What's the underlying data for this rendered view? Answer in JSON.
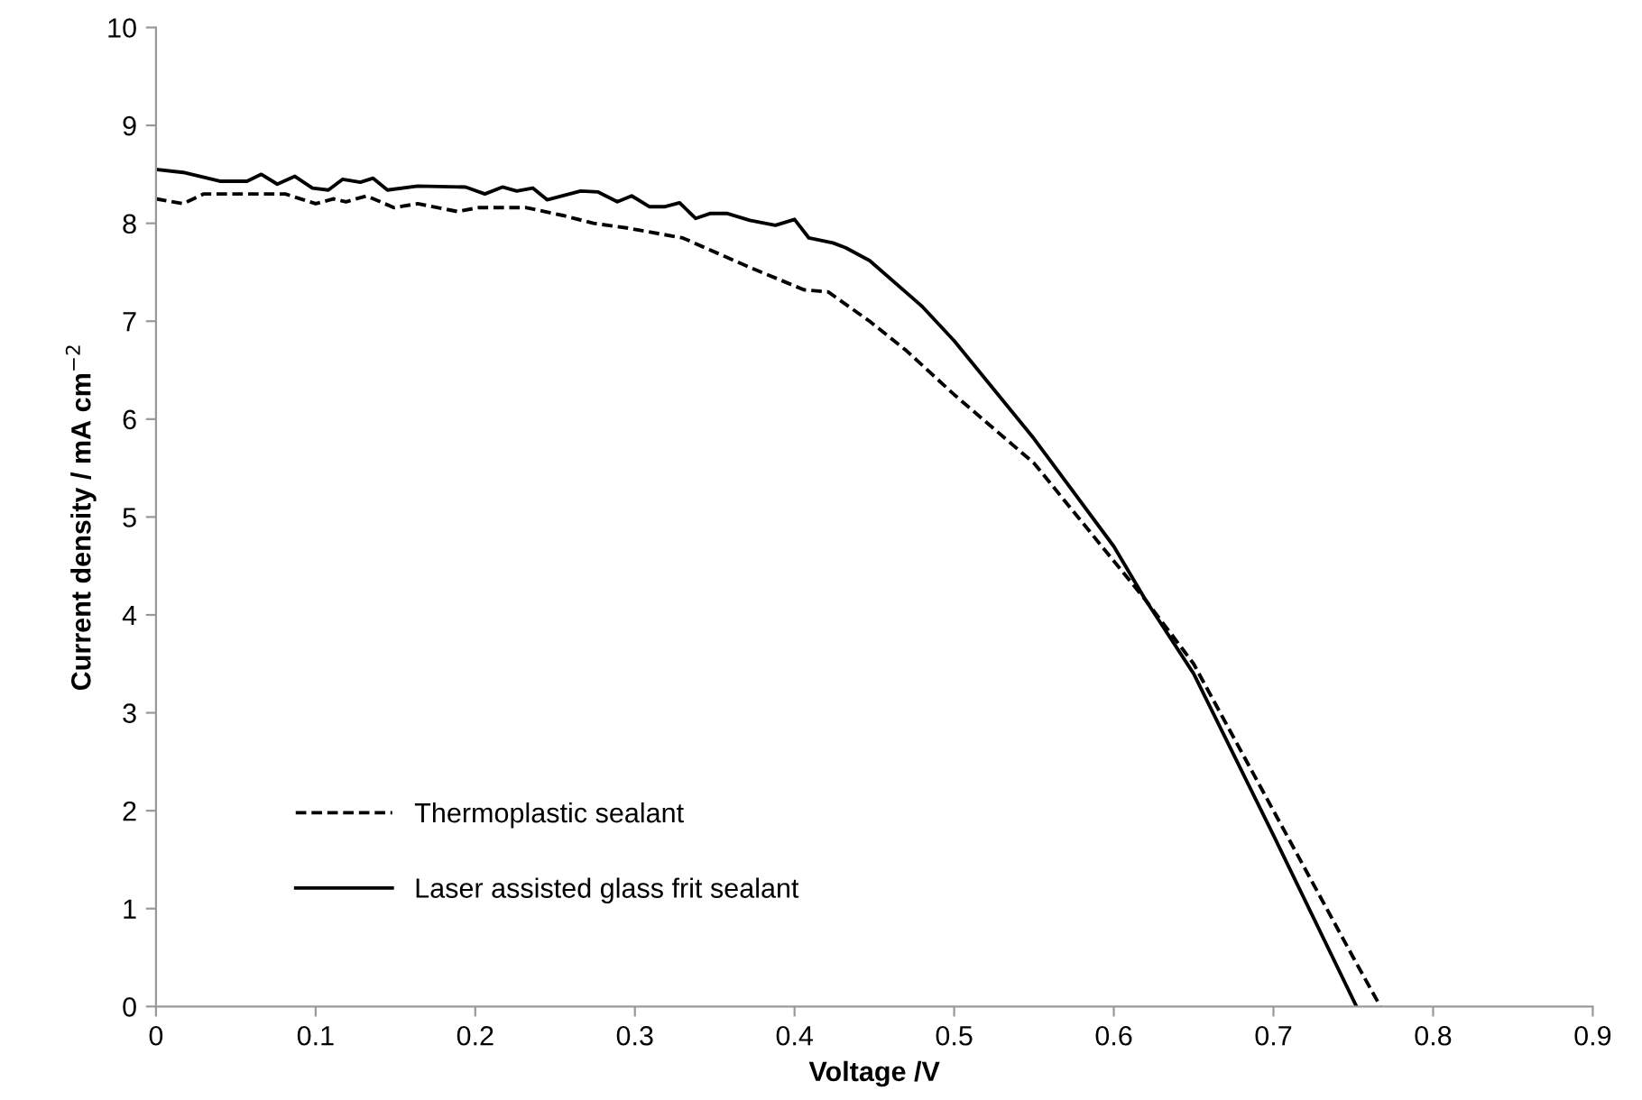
{
  "chart_data": {
    "type": "line",
    "xlabel": "Voltage /V",
    "ylabel": "Current density / mA cm$^{−2}$",
    "xlim": [
      0,
      0.9
    ],
    "xticks": [
      0,
      0.1,
      0.2,
      0.3,
      0.4,
      0.5,
      0.6,
      0.7,
      0.8,
      0.9
    ],
    "ylim": [
      0,
      10
    ],
    "yticks": [
      0,
      1,
      2,
      3,
      4,
      5,
      6,
      7,
      8,
      9,
      10
    ],
    "grid": false,
    "legend": "bottom left",
    "marker": "none",
    "series": [
      {
        "name": "Thermoplastic sealant",
        "color": "#000000",
        "line_style": "dashed",
        "x": [
          0,
          0.017,
          0.03,
          0.07,
          0.081,
          0.1,
          0.111,
          0.119,
          0.132,
          0.149,
          0.164,
          0.189,
          0.202,
          0.232,
          0.255,
          0.274,
          0.296,
          0.33,
          0.372,
          0.406,
          0.421,
          0.447,
          0.47,
          0.5,
          0.55,
          0.6,
          0.62,
          0.65,
          0.7,
          0.75,
          0.767
        ],
        "values": [
          8.25,
          8.2,
          8.3,
          8.3,
          8.3,
          8.2,
          8.25,
          8.22,
          8.28,
          8.16,
          8.2,
          8.12,
          8.16,
          8.16,
          8.08,
          8.0,
          7.95,
          7.85,
          7.55,
          7.32,
          7.3,
          7.0,
          6.7,
          6.25,
          5.55,
          4.55,
          4.15,
          3.5,
          2.0,
          0.5,
          0
        ]
      },
      {
        "name": "Laser assisted glass frit sealant",
        "color": "#000000",
        "line_style": "solid",
        "x": [
          0,
          0.017,
          0.04,
          0.057,
          0.066,
          0.076,
          0.087,
          0.098,
          0.108,
          0.117,
          0.128,
          0.136,
          0.145,
          0.164,
          0.194,
          0.206,
          0.217,
          0.226,
          0.236,
          0.245,
          0.266,
          0.277,
          0.289,
          0.298,
          0.309,
          0.319,
          0.328,
          0.338,
          0.347,
          0.358,
          0.372,
          0.388,
          0.4,
          0.409,
          0.424,
          0.432,
          0.447,
          0.48,
          0.5,
          0.55,
          0.6,
          0.62,
          0.65,
          0.7,
          0.752
        ],
        "values": [
          8.55,
          8.52,
          8.43,
          8.43,
          8.5,
          8.4,
          8.48,
          8.36,
          8.34,
          8.45,
          8.42,
          8.46,
          8.34,
          8.38,
          8.37,
          8.3,
          8.37,
          8.33,
          8.36,
          8.24,
          8.33,
          8.32,
          8.22,
          8.28,
          8.17,
          8.17,
          8.21,
          8.05,
          8.1,
          8.1,
          8.03,
          7.98,
          8.04,
          7.85,
          7.8,
          7.75,
          7.62,
          7.15,
          6.8,
          5.8,
          4.7,
          4.15,
          3.4,
          1.75,
          0
        ]
      }
    ]
  }
}
